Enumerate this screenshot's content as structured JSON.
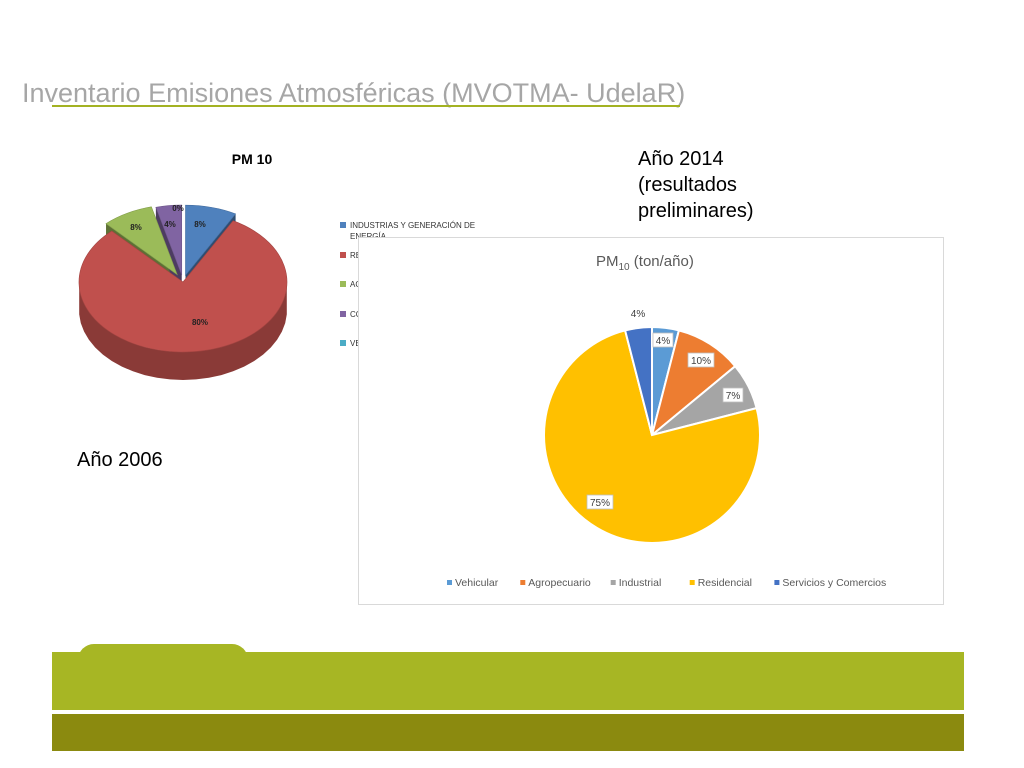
{
  "title": "Inventario Emisiones Atmosféricas (MVOTMA- UdelaR)",
  "year_2014_lines": [
    "Año 2014",
    "(resultados",
    "preliminares)"
  ],
  "year_2006": "Año 2006",
  "colors": {
    "title": "#a6a6a6",
    "accent": "#a7b624",
    "accent_dark": "#8b8a0f"
  },
  "chart_data": [
    {
      "type": "pie",
      "title": "PM 10",
      "categories": [
        "INDUSTRIAS Y GENERACIÓN DE ENERGÍA",
        "RESIDENCIALES",
        "AGROPECUARIO",
        "COMERCIOS Y SERVICIOS",
        "VEHICULARES"
      ],
      "values": [
        8,
        80,
        8,
        4,
        0
      ],
      "labels": [
        "8%",
        "80%",
        "8%",
        "4%",
        "0%"
      ],
      "colors": [
        "#4f81bd",
        "#c0504d",
        "#9bbb59",
        "#8064a2",
        "#4bacc6"
      ],
      "legend": "right",
      "style": "3d"
    },
    {
      "type": "pie",
      "title_main": "PM",
      "title_sub": "10",
      "title_rest": " (ton/año)",
      "categories": [
        "Vehicular",
        "Agropecuario",
        "Industrial",
        "Residencial",
        "Servicios y Comercios"
      ],
      "values": [
        4,
        10,
        7,
        75,
        4
      ],
      "labels": [
        "4%",
        "10%",
        "7%",
        "75%",
        "4%"
      ],
      "colors": [
        "#5b9bd5",
        "#ed7d31",
        "#a5a5a5",
        "#ffc000",
        "#4472c4"
      ],
      "legend": "bottom"
    }
  ]
}
